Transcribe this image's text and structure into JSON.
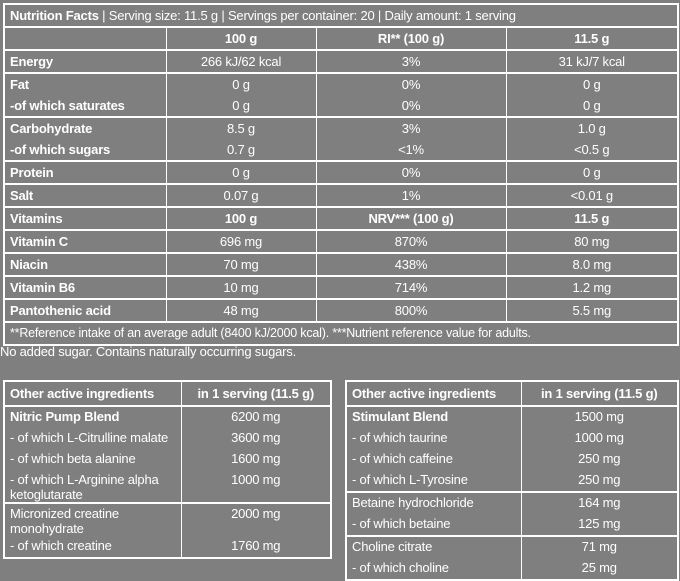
{
  "nutrition": {
    "title": "Nutrition Facts",
    "serving": "| Serving size: 11.5 g | Servings per container: 20 | Daily amount: 1 serving",
    "header": [
      "100 g",
      "RI** (100 g)",
      "11.5 g"
    ],
    "groups": [
      [
        [
          "Energy",
          "266 kJ/62 kcal",
          "3%",
          "31 kJ/7 kcal"
        ]
      ],
      [
        [
          "Fat",
          "0 g",
          "0%",
          "0 g"
        ],
        [
          "-of which saturates",
          "0 g",
          "0%",
          "0 g"
        ]
      ],
      [
        [
          "Carbohydrate",
          "8.5 g",
          "3%",
          "1.0 g"
        ],
        [
          "-of which sugars",
          "0.7 g",
          "<1%",
          "<0.5 g"
        ]
      ],
      [
        [
          "Protein",
          "0 g",
          "0%",
          "0 g"
        ]
      ],
      [
        [
          "Salt",
          "0.07 g",
          "1%",
          "<0.01 g"
        ]
      ]
    ],
    "vitamins_header": [
      "Vitamins",
      "100 g",
      "NRV*** (100 g)",
      "11.5 g"
    ],
    "vitamin_groups": [
      [
        [
          "Vitamin C",
          "696 mg",
          "870%",
          "80 mg"
        ]
      ],
      [
        [
          "Niacin",
          "70 mg",
          "438%",
          "8.0 mg"
        ]
      ],
      [
        [
          "Vitamin B6",
          "10 mg",
          "714%",
          "1.2 mg"
        ]
      ],
      [
        [
          "Pantothenic acid",
          "48 mg",
          "800%",
          "5.5 mg"
        ]
      ]
    ],
    "footnote": "**Reference intake of an average adult (8400 kJ/2000 kcal). ***Nutrient reference value for adults."
  },
  "note": "No added sugar. Contains naturally occurring sugars.",
  "active_left": {
    "header": [
      "Other active ingredients",
      "in 1 serving (11.5 g)"
    ],
    "groups": [
      [
        [
          "Nitric Pump Blend",
          "6200 mg"
        ],
        [
          "- of which L-Citrulline malate",
          "3600 mg"
        ],
        [
          "- of which beta alanine",
          "1600 mg"
        ],
        [
          "- of which L-Arginine alpha ketoglutarate",
          "1000 mg"
        ]
      ],
      [
        [
          "Micronized creatine monohydrate",
          "2000 mg"
        ],
        [
          "- of which creatine",
          "1760 mg"
        ]
      ]
    ]
  },
  "active_right": {
    "header": [
      "Other active ingredients",
      "in 1 serving (11.5 g)"
    ],
    "groups": [
      [
        [
          "Stimulant Blend",
          "1500 mg"
        ],
        [
          "- of which taurine",
          "1000 mg"
        ],
        [
          "- of which caffeine",
          "250 mg"
        ],
        [
          "- of which L-Tyrosine",
          "250 mg"
        ]
      ],
      [
        [
          "Betaine hydrochloride",
          "164 mg"
        ],
        [
          "- of which betaine",
          "125 mg"
        ]
      ],
      [
        [
          "Choline citrate",
          "71 mg"
        ],
        [
          "- of which choline",
          "25 mg"
        ]
      ]
    ]
  }
}
